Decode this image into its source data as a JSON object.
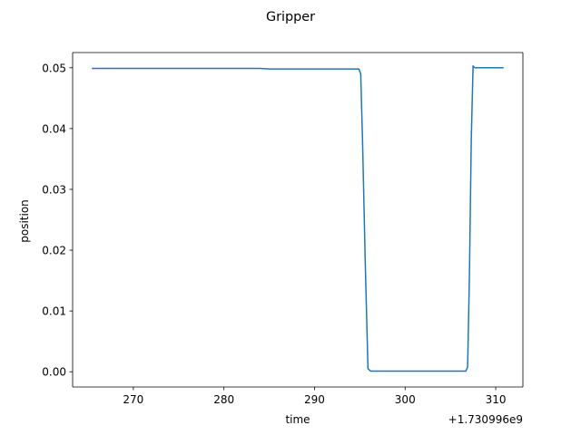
{
  "chart_data": {
    "type": "line",
    "title": "Gripper",
    "xlabel": "time",
    "ylabel": "position",
    "x_offset_label": "+1.730996e9",
    "xlim": [
      263.3,
      313.0
    ],
    "ylim": [
      -0.0025,
      0.0525
    ],
    "x_ticks": [
      270,
      280,
      290,
      300,
      310
    ],
    "x_tick_labels": [
      "270",
      "280",
      "290",
      "300",
      "310"
    ],
    "y_ticks": [
      0.0,
      0.01,
      0.02,
      0.03,
      0.04,
      0.05
    ],
    "y_tick_labels": [
      "0.00",
      "0.01",
      "0.02",
      "0.03",
      "0.04",
      "0.05"
    ],
    "grid": false,
    "series": [
      {
        "color": "#1f77b4",
        "x": [
          265.5,
          270.0,
          275.0,
          280.0,
          284.0,
          285.0,
          290.0,
          294.9,
          295.1,
          295.3,
          295.6,
          295.9,
          296.2,
          300.0,
          305.0,
          306.7,
          306.9,
          307.1,
          307.3,
          307.5,
          307.7,
          310.8
        ],
        "y": [
          0.0499,
          0.0499,
          0.0499,
          0.0499,
          0.0499,
          0.0498,
          0.0498,
          0.0498,
          0.049,
          0.038,
          0.018,
          0.0005,
          0.0001,
          0.0001,
          0.0001,
          0.0001,
          0.0008,
          0.016,
          0.038,
          0.0503,
          0.05,
          0.05
        ]
      }
    ]
  }
}
